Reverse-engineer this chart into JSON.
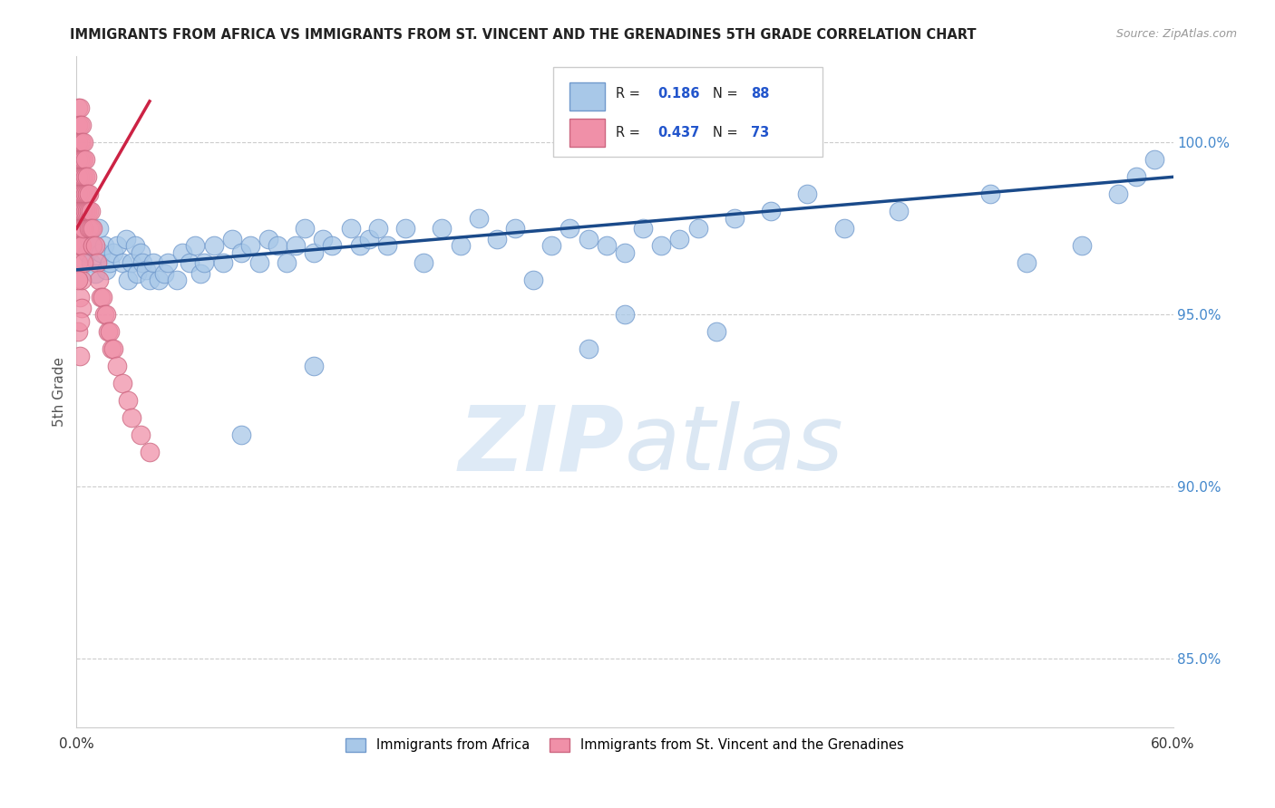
{
  "title": "IMMIGRANTS FROM AFRICA VS IMMIGRANTS FROM ST. VINCENT AND THE GRENADINES 5TH GRADE CORRELATION CHART",
  "source": "Source: ZipAtlas.com",
  "ylabel": "5th Grade",
  "xlim": [
    0.0,
    0.6
  ],
  "ylim": [
    83.0,
    102.5
  ],
  "blue_color": "#A8C8E8",
  "pink_color": "#F090A8",
  "trend_blue": "#1A4A8A",
  "trend_pink": "#CC2244",
  "watermark_color": "#D8EAF5",
  "blue_scatter_x": [
    0.002,
    0.003,
    0.004,
    0.005,
    0.006,
    0.007,
    0.008,
    0.009,
    0.01,
    0.012,
    0.013,
    0.015,
    0.016,
    0.018,
    0.02,
    0.022,
    0.025,
    0.027,
    0.028,
    0.03,
    0.032,
    0.033,
    0.035,
    0.036,
    0.038,
    0.04,
    0.042,
    0.045,
    0.048,
    0.05,
    0.055,
    0.058,
    0.062,
    0.065,
    0.068,
    0.07,
    0.075,
    0.08,
    0.085,
    0.09,
    0.095,
    0.1,
    0.105,
    0.11,
    0.115,
    0.12,
    0.125,
    0.13,
    0.135,
    0.14,
    0.15,
    0.155,
    0.16,
    0.165,
    0.17,
    0.18,
    0.19,
    0.2,
    0.21,
    0.22,
    0.23,
    0.24,
    0.25,
    0.26,
    0.27,
    0.28,
    0.29,
    0.3,
    0.31,
    0.32,
    0.33,
    0.34,
    0.36,
    0.38,
    0.4,
    0.42,
    0.45,
    0.5,
    0.52,
    0.55,
    0.57,
    0.58,
    0.59,
    0.3,
    0.35,
    0.28,
    0.13,
    0.09
  ],
  "blue_scatter_y": [
    98.5,
    97.8,
    97.5,
    98.0,
    96.8,
    97.2,
    96.5,
    97.0,
    96.2,
    97.5,
    96.8,
    97.0,
    96.3,
    96.5,
    96.8,
    97.0,
    96.5,
    97.2,
    96.0,
    96.5,
    97.0,
    96.2,
    96.8,
    96.5,
    96.3,
    96.0,
    96.5,
    96.0,
    96.2,
    96.5,
    96.0,
    96.8,
    96.5,
    97.0,
    96.2,
    96.5,
    97.0,
    96.5,
    97.2,
    96.8,
    97.0,
    96.5,
    97.2,
    97.0,
    96.5,
    97.0,
    97.5,
    96.8,
    97.2,
    97.0,
    97.5,
    97.0,
    97.2,
    97.5,
    97.0,
    97.5,
    96.5,
    97.5,
    97.0,
    97.8,
    97.2,
    97.5,
    96.0,
    97.0,
    97.5,
    97.2,
    97.0,
    96.8,
    97.5,
    97.0,
    97.2,
    97.5,
    97.8,
    98.0,
    98.5,
    97.5,
    98.0,
    98.5,
    96.5,
    97.0,
    98.5,
    99.0,
    99.5,
    95.0,
    94.5,
    94.0,
    93.5,
    91.5
  ],
  "pink_scatter_x": [
    0.001,
    0.001,
    0.001,
    0.001,
    0.001,
    0.001,
    0.001,
    0.001,
    0.001,
    0.001,
    0.002,
    0.002,
    0.002,
    0.002,
    0.002,
    0.002,
    0.002,
    0.002,
    0.002,
    0.003,
    0.003,
    0.003,
    0.003,
    0.003,
    0.003,
    0.003,
    0.003,
    0.004,
    0.004,
    0.004,
    0.004,
    0.004,
    0.004,
    0.005,
    0.005,
    0.005,
    0.005,
    0.006,
    0.006,
    0.006,
    0.007,
    0.007,
    0.007,
    0.008,
    0.008,
    0.009,
    0.009,
    0.01,
    0.011,
    0.012,
    0.013,
    0.014,
    0.015,
    0.016,
    0.017,
    0.018,
    0.019,
    0.02,
    0.022,
    0.025,
    0.028,
    0.03,
    0.035,
    0.04,
    0.002,
    0.003,
    0.001,
    0.002,
    0.003,
    0.004,
    0.001,
    0.002
  ],
  "pink_scatter_y": [
    101.0,
    100.5,
    100.0,
    99.5,
    99.0,
    98.5,
    98.0,
    97.5,
    97.0,
    96.5,
    101.0,
    100.5,
    100.0,
    99.5,
    99.0,
    98.5,
    98.0,
    97.5,
    97.0,
    100.5,
    100.0,
    99.5,
    99.0,
    98.5,
    98.0,
    97.5,
    97.0,
    100.0,
    99.5,
    99.0,
    98.5,
    98.0,
    97.5,
    99.5,
    99.0,
    98.5,
    98.0,
    99.0,
    98.5,
    98.0,
    98.5,
    98.0,
    97.5,
    98.0,
    97.5,
    97.5,
    97.0,
    97.0,
    96.5,
    96.0,
    95.5,
    95.5,
    95.0,
    95.0,
    94.5,
    94.5,
    94.0,
    94.0,
    93.5,
    93.0,
    92.5,
    92.0,
    91.5,
    91.0,
    95.5,
    96.0,
    94.5,
    93.8,
    95.2,
    96.5,
    96.0,
    94.8
  ],
  "trend_blue_x0": 0.0,
  "trend_blue_x1": 0.6,
  "trend_blue_y0": 96.3,
  "trend_blue_y1": 99.0,
  "trend_pink_x0": 0.0,
  "trend_pink_x1": 0.04,
  "trend_pink_y0": 97.5,
  "trend_pink_y1": 101.2
}
